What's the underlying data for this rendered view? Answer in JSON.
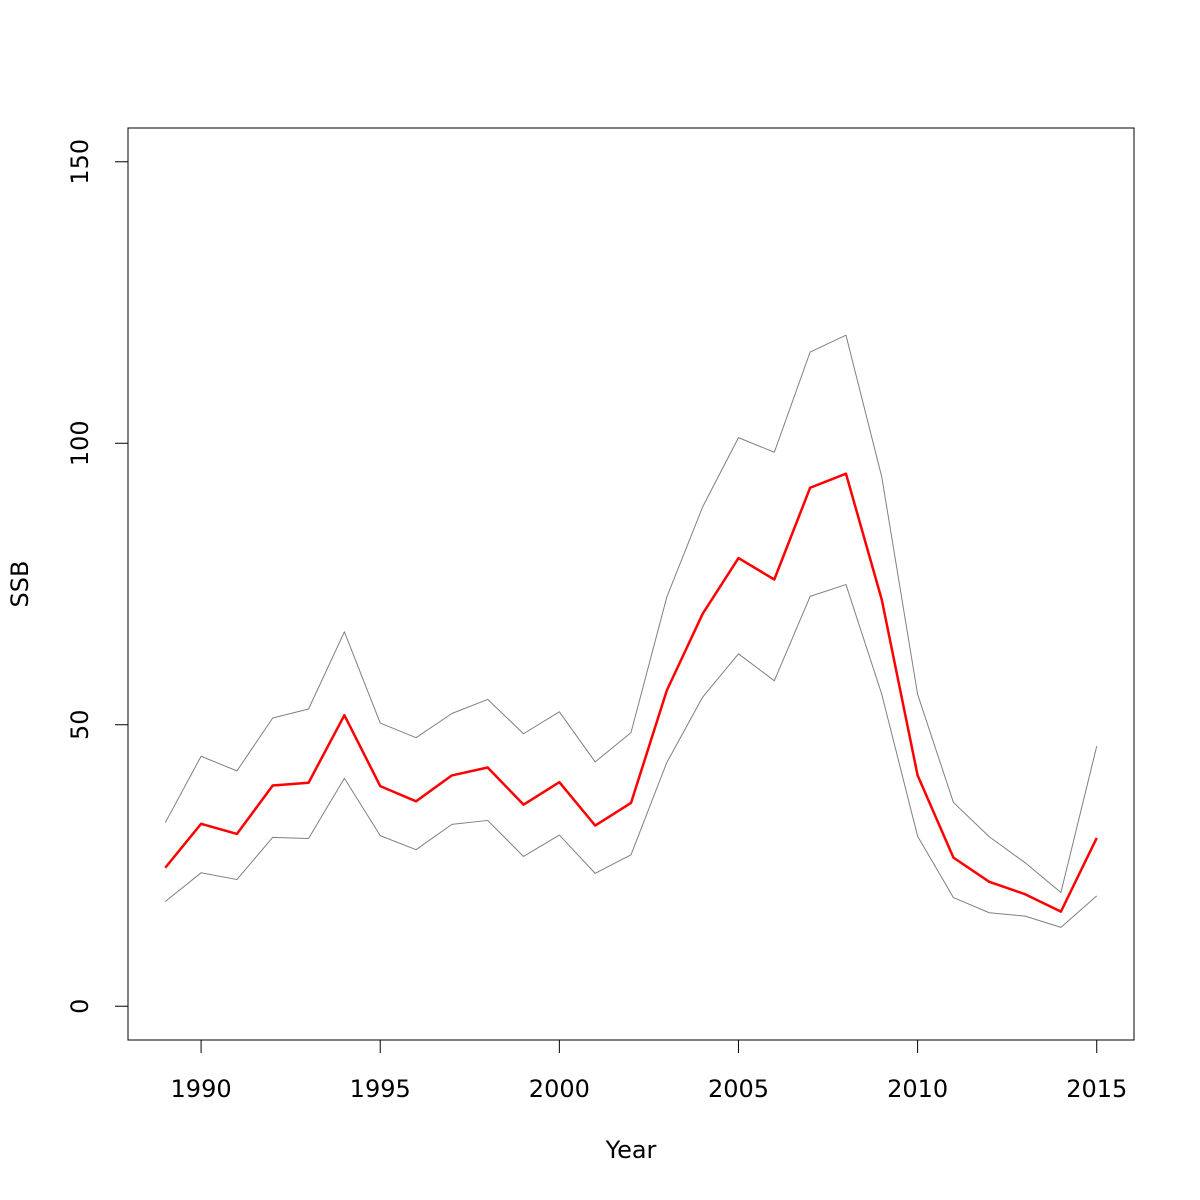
{
  "chart_data": {
    "type": "line",
    "title": "",
    "xlabel": "Year",
    "ylabel": "SSB",
    "xlim": [
      1989,
      2015
    ],
    "ylim": [
      0,
      150
    ],
    "xticks": [
      1990,
      1995,
      2000,
      2005,
      2010,
      2015
    ],
    "yticks": [
      0,
      50,
      100,
      150
    ],
    "grid": false,
    "x": [
      1989,
      1990,
      1991,
      1992,
      1993,
      1994,
      1995,
      1996,
      1997,
      1998,
      1999,
      2000,
      2001,
      2002,
      2003,
      2004,
      2005,
      2006,
      2007,
      2008,
      2009,
      2010,
      2011,
      2012,
      2013,
      2014,
      2015
    ],
    "series": [
      {
        "color": "#808080",
        "values": [
          32.6,
          44.4,
          41.8,
          51.2,
          52.8,
          66.5,
          50.3,
          47.7,
          52.0,
          54.5,
          48.4,
          52.3,
          43.4,
          48.6,
          72.7,
          88.7,
          101.0,
          98.4,
          116.2,
          119.2,
          94.0,
          55.4,
          36.2,
          30.1,
          25.5,
          20.2,
          46.2
        ]
      },
      {
        "color": "#ff0000",
        "values": [
          24.6,
          32.4,
          30.6,
          39.2,
          39.7,
          51.7,
          39.1,
          36.4,
          41.0,
          42.4,
          35.8,
          39.8,
          32.1,
          36.1,
          56.1,
          69.7,
          79.6,
          75.8,
          92.1,
          94.6,
          72.2,
          41.0,
          26.4,
          22.1,
          19.9,
          16.8,
          29.9
        ]
      },
      {
        "color": "#808080",
        "values": [
          18.6,
          23.7,
          22.5,
          30.0,
          29.8,
          40.5,
          30.3,
          27.8,
          32.3,
          33.0,
          26.6,
          30.4,
          23.6,
          26.9,
          43.3,
          54.9,
          62.6,
          57.8,
          72.8,
          74.9,
          55.4,
          30.2,
          19.3,
          16.6,
          16.0,
          14.0,
          19.6
        ]
      }
    ]
  }
}
